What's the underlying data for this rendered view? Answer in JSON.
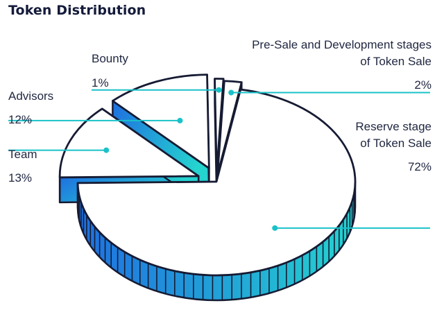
{
  "chart_data": {
    "type": "pie",
    "title": "Token Distribution",
    "slices": [
      {
        "label": "Reserve stage of Token Sale",
        "label_lines": [
          "Reserve stage",
          "of Token Sale"
        ],
        "value": 72,
        "value_label": "72%"
      },
      {
        "label": "Team",
        "label_lines": [
          "Team"
        ],
        "value": 13,
        "value_label": "13%"
      },
      {
        "label": "Advisors",
        "label_lines": [
          "Advisors"
        ],
        "value": 12,
        "value_label": "12%"
      },
      {
        "label": "Bounty",
        "label_lines": [
          "Bounty"
        ],
        "value": 1,
        "value_label": "1%"
      },
      {
        "label": "Pre-Sale and Development stages of Token Sale",
        "label_lines": [
          "Pre-Sale and Development stages",
          "of Token Sale"
        ],
        "value": 2,
        "value_label": "2%"
      }
    ],
    "style": "3d-exploded-pie"
  },
  "colors": {
    "title": "#141b3a",
    "text": "#1f2640",
    "leader": "#19c2c9",
    "outline": "#161b33",
    "gradient_start": "#1e6fe0",
    "gradient_end": "#25d3cf",
    "slice_top": "#ffffff"
  }
}
